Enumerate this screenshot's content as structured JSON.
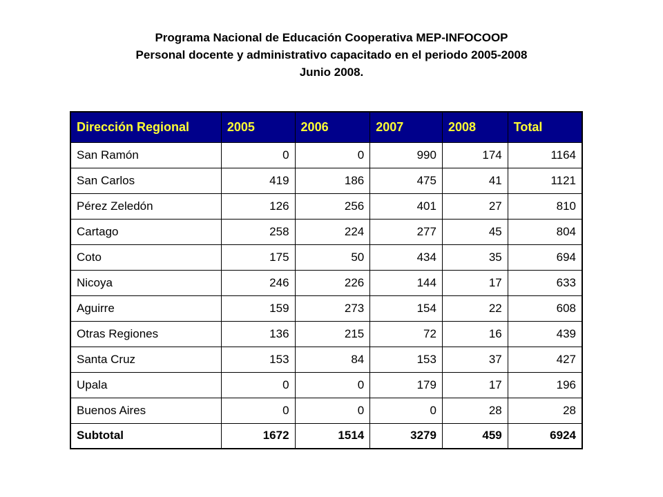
{
  "title": {
    "line1": "Programa Nacional de Educación Cooperativa MEP-INFOCOOP",
    "line2": "Personal docente y administrativo capacitado en el periodo 2005-2008",
    "line3": "Junio 2008."
  },
  "colors": {
    "header_bg": "#00008b",
    "header_text": "#ffff33"
  },
  "table": {
    "headers": [
      "Dirección Regional",
      "2005",
      "2006",
      "2007",
      "2008",
      "Total"
    ],
    "rows": [
      [
        "San Ramón",
        "0",
        "0",
        "990",
        "174",
        "1164"
      ],
      [
        "San Carlos",
        "419",
        "186",
        "475",
        "41",
        "1121"
      ],
      [
        "Pérez Zeledón",
        "126",
        "256",
        "401",
        "27",
        "810"
      ],
      [
        "Cartago",
        "258",
        "224",
        "277",
        "45",
        "804"
      ],
      [
        "Coto",
        "175",
        "50",
        "434",
        "35",
        "694"
      ],
      [
        "Nicoya",
        "246",
        "226",
        "144",
        "17",
        "633"
      ],
      [
        "Aguirre",
        "159",
        "273",
        "154",
        "22",
        "608"
      ],
      [
        "Otras Regiones",
        "136",
        "215",
        "72",
        "16",
        "439"
      ],
      [
        "Santa Cruz",
        "153",
        "84",
        "153",
        "37",
        "427"
      ],
      [
        "Upala",
        "0",
        "0",
        "179",
        "17",
        "196"
      ],
      [
        "Buenos Aires",
        "0",
        "0",
        "0",
        "28",
        "28"
      ]
    ],
    "subtotal": [
      "Subtotal",
      "1672",
      "1514",
      "3279",
      "459",
      "6924"
    ]
  }
}
